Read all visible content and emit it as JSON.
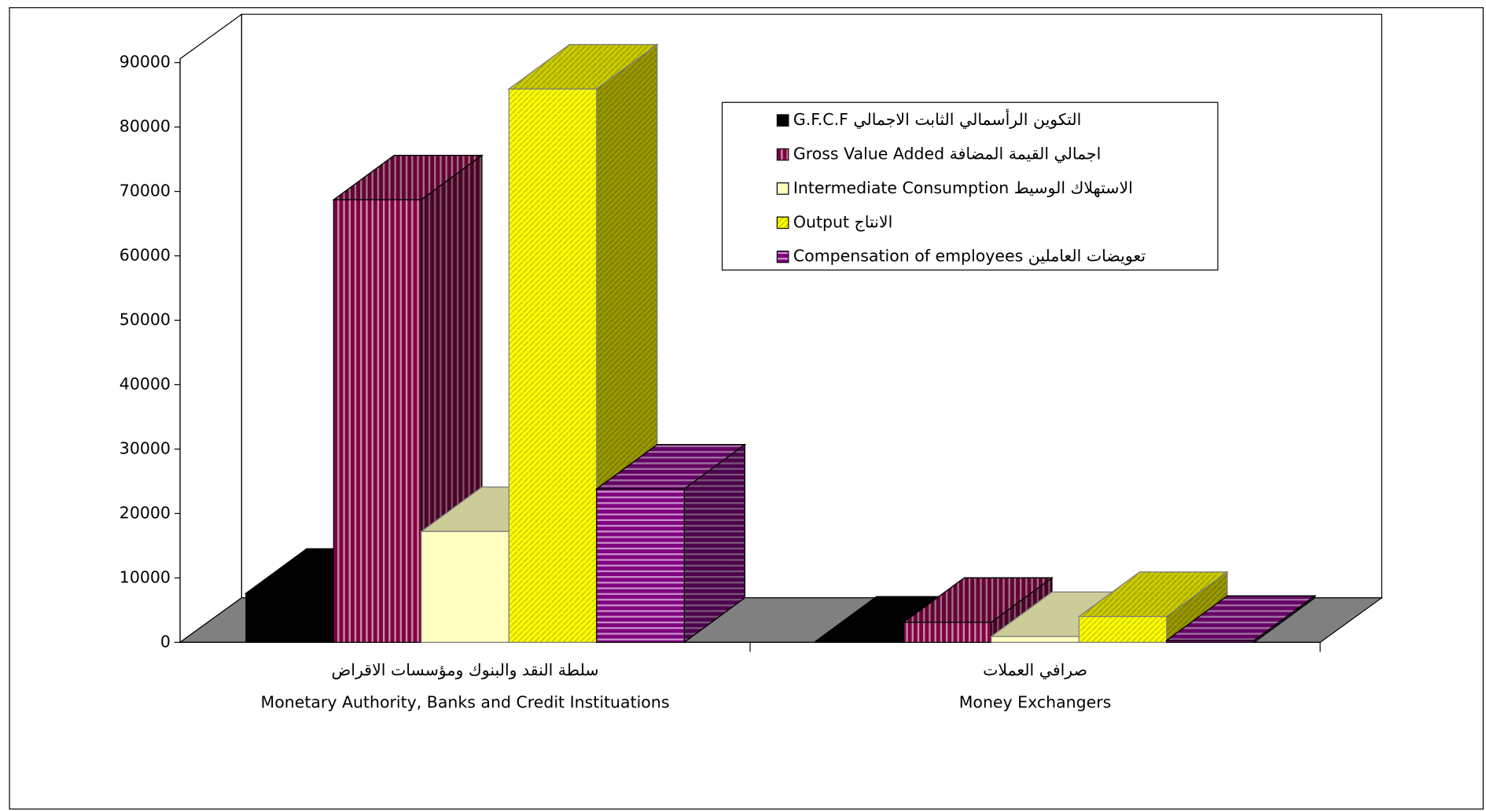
{
  "chart_data": {
    "type": "bar3d",
    "categories": [
      "Monetary Authority, Banks and Credit Instituations",
      "Money Exchangers"
    ],
    "categories_ar": [
      "سلطة النقد والبنوك ومؤسسات الاقراض",
      "صرافي العملات"
    ],
    "series": [
      {
        "name": "G.F.C.F التكوين الرأسمالي الثابت الاجمالي",
        "color": "#000000",
        "pattern": "none",
        "values": [
          7600,
          200
        ]
      },
      {
        "name": "Gross Value Added  اجمالي القيمة  المضافة",
        "color": "#800040",
        "pattern": "vertical",
        "values": [
          68700,
          3100
        ]
      },
      {
        "name": "Intermediate Consumption الاستهلاك  الوسيط",
        "color": "#ffffc0",
        "pattern": "none",
        "values": [
          17200,
          900
        ]
      },
      {
        "name": "Output الانتاج",
        "color": "#ffff00",
        "pattern": "diagonal",
        "values": [
          85900,
          4000
        ]
      },
      {
        "name": "Compensation of employees تعويضات  العاملين",
        "color": "#800080",
        "pattern": "horizontal",
        "values": [
          23800,
          300
        ]
      }
    ],
    "ylim": [
      0,
      90000
    ],
    "yticks": [
      0,
      10000,
      20000,
      30000,
      40000,
      50000,
      60000,
      70000,
      80000,
      90000
    ],
    "legend": "top-right"
  }
}
